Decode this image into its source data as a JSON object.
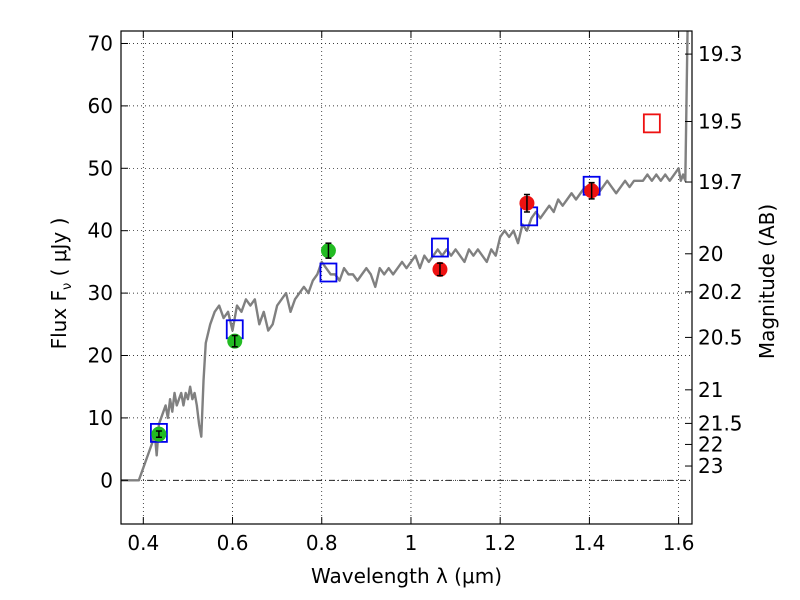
{
  "chart_data": {
    "type": "scatter",
    "xlabel": "Wavelength  λ (μm)",
    "ylabel": "Flux  F",
    "ylabel_sub": "ν",
    "ylabel_tail": " (  μJy )",
    "y2label": "Magnitude (AB)",
    "xlim": [
      0.35,
      1.63
    ],
    "ylim": [
      -7,
      72
    ],
    "xticks": [
      0.4,
      0.6,
      0.8,
      1.0,
      1.2,
      1.4,
      1.6
    ],
    "xtick_labels": [
      "0.4",
      "0.6",
      "0.8",
      "1",
      "1.2",
      "1.4",
      "1.6"
    ],
    "yticks": [
      0,
      10,
      20,
      30,
      40,
      50,
      60,
      70
    ],
    "ytick_labels": [
      "0",
      "10",
      "20",
      "30",
      "40",
      "50",
      "60",
      "70"
    ],
    "magnitude_ticks": [
      {
        "label": "19.3",
        "flux": 68.3
      },
      {
        "label": "19.5",
        "flux": 57.5
      },
      {
        "label": "19.7",
        "flux": 47.8
      },
      {
        "label": "20",
        "flux": 36.3
      },
      {
        "label": "20.2",
        "flux": 30.2
      },
      {
        "label": "20.5",
        "flux": 22.9
      },
      {
        "label": "21",
        "flux": 14.5
      },
      {
        "label": "21.5",
        "flux": 9.12
      },
      {
        "label": "22",
        "flux": 5.75
      },
      {
        "label": "23",
        "flux": 2.29
      }
    ],
    "grid": true,
    "zero_line": true,
    "colors": {
      "model": "#808080",
      "green": "#22bb22",
      "red": "#ee1111",
      "blue_box": "#0000ee",
      "red_box": "#ee1111"
    },
    "series": [
      {
        "kind": "line",
        "x": [
          0.35,
          0.37,
          0.39,
          0.4,
          0.41,
          0.42,
          0.425,
          0.43,
          0.435,
          0.44,
          0.445,
          0.45,
          0.455,
          0.46,
          0.465,
          0.47,
          0.475,
          0.48,
          0.485,
          0.49,
          0.495,
          0.5,
          0.505,
          0.51,
          0.515,
          0.52,
          0.525,
          0.53,
          0.535,
          0.54,
          0.55,
          0.56,
          0.57,
          0.58,
          0.59,
          0.6,
          0.61,
          0.62,
          0.63,
          0.64,
          0.65,
          0.66,
          0.67,
          0.68,
          0.69,
          0.7,
          0.71,
          0.72,
          0.73,
          0.74,
          0.75,
          0.76,
          0.77,
          0.78,
          0.79,
          0.8,
          0.81,
          0.82,
          0.83,
          0.84,
          0.85,
          0.86,
          0.87,
          0.88,
          0.89,
          0.9,
          0.91,
          0.92,
          0.93,
          0.94,
          0.95,
          0.96,
          0.97,
          0.98,
          0.99,
          1.0,
          1.01,
          1.02,
          1.03,
          1.04,
          1.05,
          1.06,
          1.07,
          1.08,
          1.09,
          1.1,
          1.11,
          1.12,
          1.13,
          1.14,
          1.15,
          1.16,
          1.17,
          1.18,
          1.19,
          1.2,
          1.21,
          1.22,
          1.23,
          1.24,
          1.25,
          1.26,
          1.27,
          1.28,
          1.29,
          1.3,
          1.31,
          1.32,
          1.33,
          1.34,
          1.35,
          1.36,
          1.37,
          1.38,
          1.39,
          1.4,
          1.41,
          1.42,
          1.43,
          1.44,
          1.45,
          1.46,
          1.47,
          1.48,
          1.49,
          1.5,
          1.51,
          1.52,
          1.53,
          1.54,
          1.55,
          1.56,
          1.57,
          1.58,
          1.59,
          1.6,
          1.605,
          1.61,
          1.615,
          1.62
        ],
        "y": [
          0,
          0,
          0,
          2,
          4,
          6,
          8,
          4,
          9,
          10,
          11,
          12,
          10,
          13,
          11,
          14,
          12,
          13,
          14,
          12,
          14,
          13,
          15,
          13,
          14,
          12,
          9,
          7,
          16,
          22,
          25,
          27,
          28,
          26,
          27,
          24,
          28,
          27,
          29,
          28,
          29,
          25,
          27,
          24,
          25,
          28,
          29,
          30,
          27,
          29,
          30,
          31,
          30,
          32,
          33,
          35,
          34,
          33,
          33,
          32,
          34,
          33,
          33,
          32,
          33,
          34,
          33,
          31,
          34,
          33,
          34,
          33,
          34,
          35,
          34,
          35,
          36,
          34,
          36,
          35,
          36,
          37,
          36,
          37,
          36,
          37,
          36,
          35,
          37,
          36,
          37,
          36,
          35,
          37,
          36,
          39,
          40,
          39,
          40,
          38,
          41,
          40,
          42,
          43,
          42,
          43,
          44,
          43,
          45,
          44,
          45,
          46,
          45,
          46,
          47,
          46,
          47,
          46,
          47,
          48,
          47,
          46,
          47,
          48,
          47,
          48,
          48,
          48,
          49,
          48,
          49,
          48,
          49,
          48,
          49,
          50,
          48,
          49,
          48,
          75
        ]
      },
      {
        "kind": "points",
        "name": "green",
        "x": [
          0.435,
          0.605,
          0.815
        ],
        "y": [
          7.4,
          22.3,
          36.8
        ],
        "err": [
          0.5,
          0.9,
          1.2
        ]
      },
      {
        "kind": "points",
        "name": "red",
        "x": [
          1.065,
          1.26,
          1.405
        ],
        "y": [
          33.8,
          44.4,
          46.4
        ],
        "err": [
          1.0,
          1.4,
          1.3
        ]
      },
      {
        "kind": "boxes",
        "name": "blue",
        "x": [
          0.435,
          0.605,
          0.815,
          1.065,
          1.265,
          1.405
        ],
        "y": [
          7.6,
          24.2,
          33.3,
          37.3,
          42.3,
          47.2
        ]
      },
      {
        "kind": "boxes",
        "name": "red-box",
        "x": [
          1.54
        ],
        "y": [
          57.2
        ]
      }
    ]
  }
}
